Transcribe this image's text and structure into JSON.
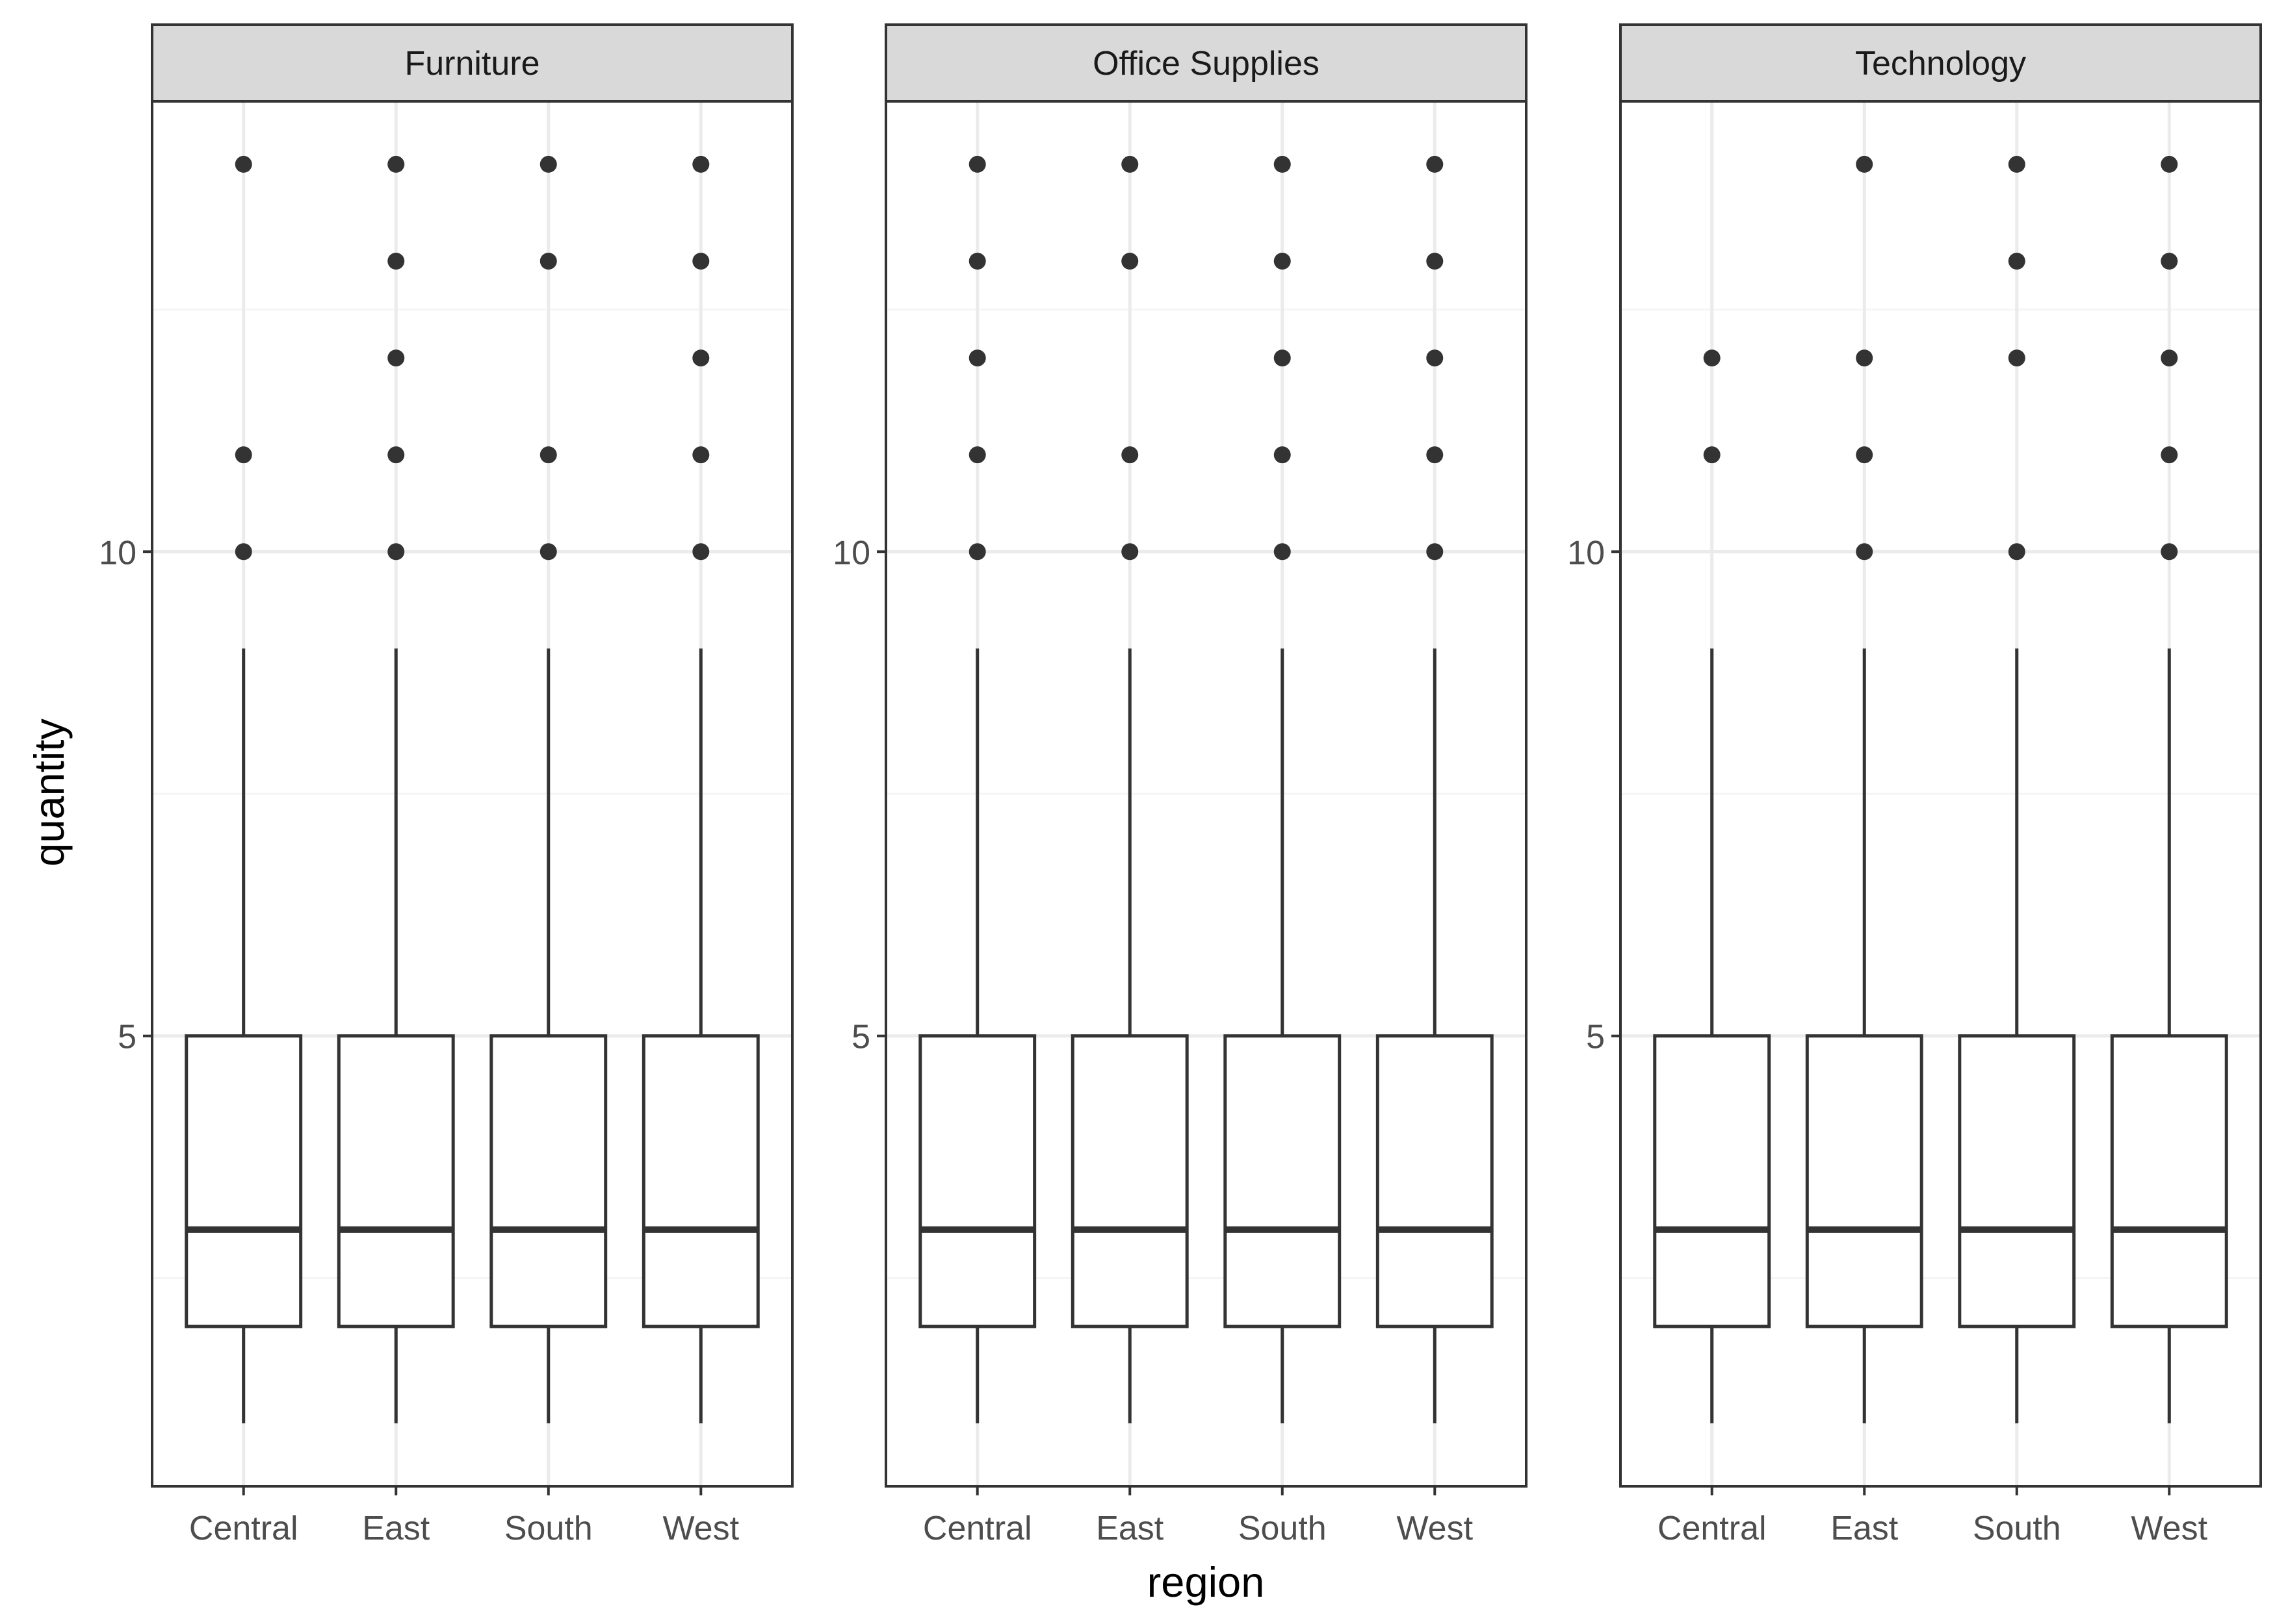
{
  "chart_data": {
    "type": "boxplot",
    "xlabel": "region",
    "ylabel": "quantity",
    "ylim": [
      0.35,
      14.65
    ],
    "y_ticks": [
      5,
      10
    ],
    "y_minor_ticks": [
      2.5,
      7.5,
      12.5
    ],
    "grid": true,
    "categories": [
      "Central",
      "East",
      "South",
      "West"
    ],
    "facets": [
      {
        "name": "Furniture",
        "boxes": [
          {
            "category": "Central",
            "lower_whisker": 1,
            "q1": 2,
            "median": 3,
            "q3": 5,
            "upper_whisker": 9,
            "outliers": [
              10,
              11,
              14
            ]
          },
          {
            "category": "East",
            "lower_whisker": 1,
            "q1": 2,
            "median": 3,
            "q3": 5,
            "upper_whisker": 9,
            "outliers": [
              10,
              11,
              12,
              13,
              14
            ]
          },
          {
            "category": "South",
            "lower_whisker": 1,
            "q1": 2,
            "median": 3,
            "q3": 5,
            "upper_whisker": 9,
            "outliers": [
              10,
              11,
              13,
              14
            ]
          },
          {
            "category": "West",
            "lower_whisker": 1,
            "q1": 2,
            "median": 3,
            "q3": 5,
            "upper_whisker": 9,
            "outliers": [
              10,
              11,
              12,
              13,
              14
            ]
          }
        ]
      },
      {
        "name": "Office Supplies",
        "boxes": [
          {
            "category": "Central",
            "lower_whisker": 1,
            "q1": 2,
            "median": 3,
            "q3": 5,
            "upper_whisker": 9,
            "outliers": [
              10,
              11,
              12,
              13,
              14
            ]
          },
          {
            "category": "East",
            "lower_whisker": 1,
            "q1": 2,
            "median": 3,
            "q3": 5,
            "upper_whisker": 9,
            "outliers": [
              10,
              11,
              13,
              14
            ]
          },
          {
            "category": "South",
            "lower_whisker": 1,
            "q1": 2,
            "median": 3,
            "q3": 5,
            "upper_whisker": 9,
            "outliers": [
              10,
              11,
              12,
              13,
              14
            ]
          },
          {
            "category": "West",
            "lower_whisker": 1,
            "q1": 2,
            "median": 3,
            "q3": 5,
            "upper_whisker": 9,
            "outliers": [
              10,
              11,
              12,
              13,
              14
            ]
          }
        ]
      },
      {
        "name": "Technology",
        "boxes": [
          {
            "category": "Central",
            "lower_whisker": 1,
            "q1": 2,
            "median": 3,
            "q3": 5,
            "upper_whisker": 9,
            "outliers": [
              11,
              12
            ]
          },
          {
            "category": "East",
            "lower_whisker": 1,
            "q1": 2,
            "median": 3,
            "q3": 5,
            "upper_whisker": 9,
            "outliers": [
              10,
              11,
              12,
              14
            ]
          },
          {
            "category": "South",
            "lower_whisker": 1,
            "q1": 2,
            "median": 3,
            "q3": 5,
            "upper_whisker": 9,
            "outliers": [
              10,
              12,
              13,
              14
            ]
          },
          {
            "category": "West",
            "lower_whisker": 1,
            "q1": 2,
            "median": 3,
            "q3": 5,
            "upper_whisker": 9,
            "outliers": [
              10,
              11,
              12,
              13,
              14
            ]
          }
        ]
      }
    ],
    "colors": {
      "strip_fill": "#d9d9d9",
      "panel_border": "#333333",
      "box_line": "#333333",
      "grid_major": "#ebebeb",
      "grid_minor": "#f5f5f5"
    }
  }
}
